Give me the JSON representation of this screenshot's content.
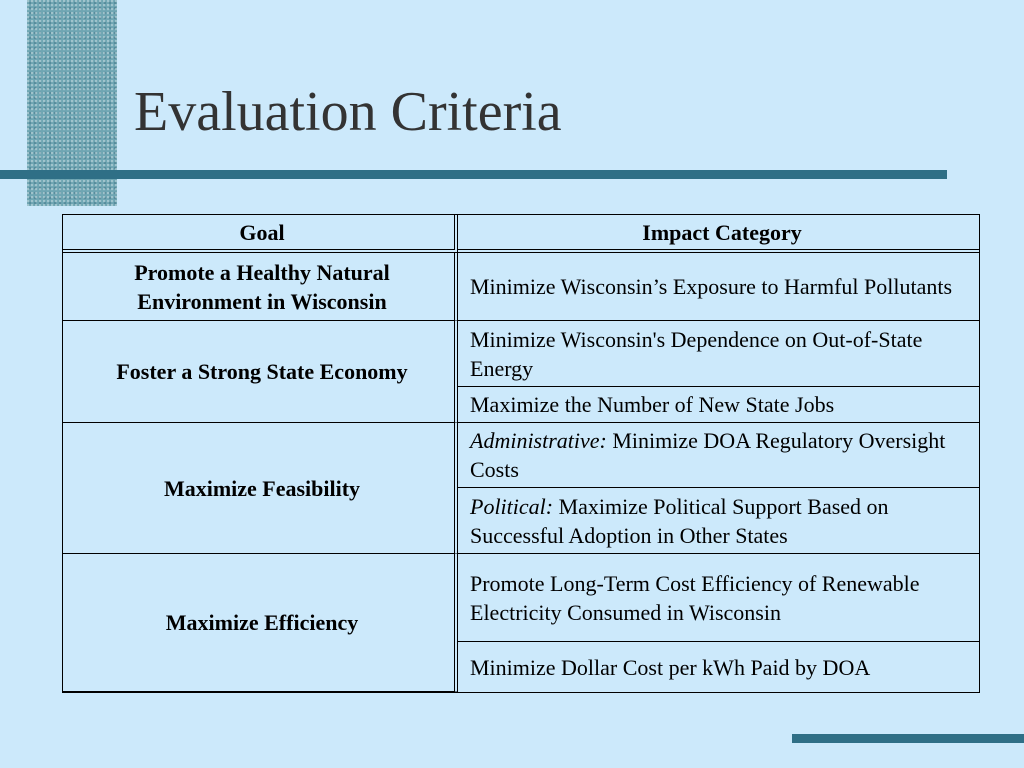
{
  "slide": {
    "title": "Evaluation Criteria"
  },
  "table": {
    "headers": {
      "goal": "Goal",
      "impact": "Impact Category"
    },
    "goals": [
      "Promote a Healthy Natural Environment in Wisconsin",
      "Foster a Strong State Economy",
      "Maximize Feasibility",
      "Maximize Efficiency"
    ],
    "impacts": [
      {
        "prefix": "",
        "text": "Minimize Wisconsin’s Exposure to Harmful Pollutants"
      },
      {
        "prefix": "",
        "text": "Minimize Wisconsin's Dependence on Out-of-State Energy"
      },
      {
        "prefix": "",
        "text": "Maximize the Number of New State Jobs"
      },
      {
        "prefix": "Administrative:",
        "text": "Minimize DOA Regulatory Oversight Costs"
      },
      {
        "prefix": "Political:",
        "text": "Maximize Political Support Based on Successful Adoption in Other States"
      },
      {
        "prefix": "",
        "text": "Promote Long-Term Cost Efficiency of Renewable Electricity Consumed in Wisconsin"
      },
      {
        "prefix": "",
        "text": "Minimize Dollar Cost per kWh Paid by  DOA"
      }
    ]
  },
  "colors": {
    "background": "#cce9fb",
    "accent": "#2f6f86",
    "title_text": "#333333"
  }
}
